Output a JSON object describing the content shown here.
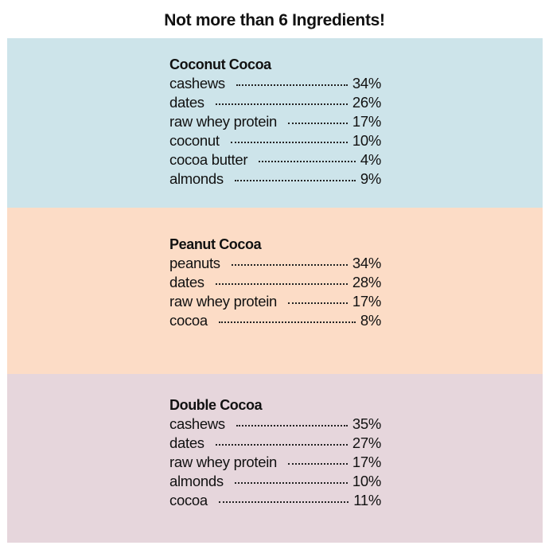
{
  "title": "Not more than 6 Ingredients!",
  "recipes": [
    {
      "name": "Coconut Cocoa",
      "color": "#cde4ea",
      "ingredients": [
        {
          "name": "cashews",
          "percent": "34%"
        },
        {
          "name": "dates",
          "percent": "26%"
        },
        {
          "name": "raw whey protein",
          "percent": "17%"
        },
        {
          "name": "coconut",
          "percent": "10%"
        },
        {
          "name": "cocoa butter",
          "percent": "4%"
        },
        {
          "name": "almonds",
          "percent": "9%"
        }
      ]
    },
    {
      "name": "Peanut Cocoa",
      "color": "#fcdcc6",
      "ingredients": [
        {
          "name": "peanuts",
          "percent": "34%"
        },
        {
          "name": "dates",
          "percent": "28%"
        },
        {
          "name": "raw whey protein",
          "percent": "17%"
        },
        {
          "name": "cocoa",
          "percent": "8%"
        }
      ]
    },
    {
      "name": "Double Cocoa",
      "color": "#e6d6dc",
      "ingredients": [
        {
          "name": "cashews",
          "percent": "35%"
        },
        {
          "name": "dates",
          "percent": "27%"
        },
        {
          "name": "raw whey protein",
          "percent": "17%"
        },
        {
          "name": "almonds",
          "percent": "10%"
        },
        {
          "name": "cocoa",
          "percent": "11%"
        }
      ]
    }
  ]
}
